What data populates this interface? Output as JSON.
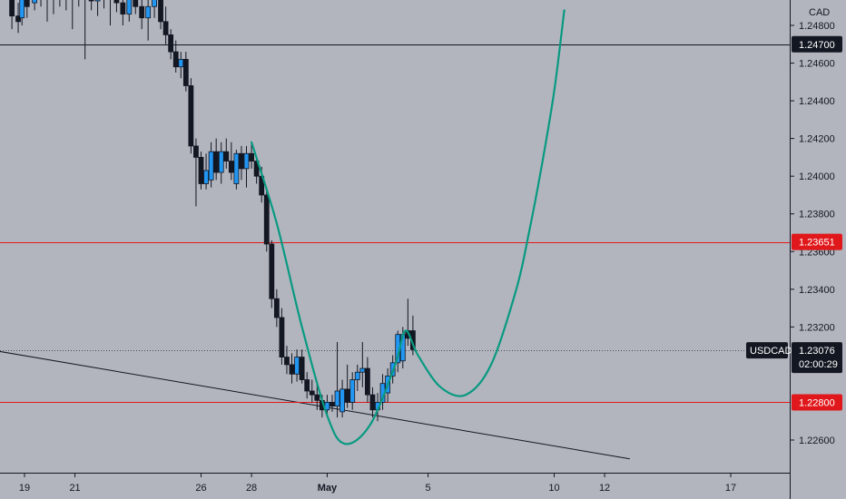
{
  "chart_data": {
    "type": "candlestick",
    "symbol": "USDCAD",
    "currency": "CAD",
    "ylim": [
      1.2248,
      1.2505
    ],
    "y_ticks": [
      1.248,
      1.246,
      1.244,
      1.242,
      1.24,
      1.238,
      1.236,
      1.234,
      1.232,
      1.226
    ],
    "y_tick_labels": [
      "1.24800",
      "1.24600",
      "1.24400",
      "1.24200",
      "1.24000",
      "1.23800",
      "1.23600",
      "1.23400",
      "1.23200",
      "1.22600"
    ],
    "x_ticks": [
      {
        "label": "19",
        "day": 19,
        "bold": false
      },
      {
        "label": "21",
        "day": 21,
        "bold": false
      },
      {
        "label": "26",
        "day": 26,
        "bold": false
      },
      {
        "label": "28",
        "day": 28,
        "bold": false
      },
      {
        "label": "May",
        "day": 31,
        "bold": true
      },
      {
        "label": "5",
        "day": 35,
        "bold": false
      },
      {
        "label": "10",
        "day": 40,
        "bold": false
      },
      {
        "label": "12",
        "day": 42,
        "bold": false
      },
      {
        "label": "17",
        "day": 47,
        "bold": false
      }
    ],
    "horizontal_lines": [
      {
        "value": 1.247,
        "label": "1.24700",
        "color": "#131722",
        "label_bg": "#131722"
      },
      {
        "value": 1.23651,
        "label": "1.23651",
        "color": "#e0181b",
        "label_bg": "#e0181b"
      },
      {
        "value": 1.228,
        "label": "1.22800",
        "color": "#e0181b",
        "label_bg": "#e0181b"
      }
    ],
    "current_price": {
      "value": 1.23076,
      "label": "1.23076",
      "countdown": "02:00:29",
      "symbol_label": "USDCAD"
    },
    "trendline": {
      "points": [
        [
          16.7,
          1.231
        ],
        [
          43.0,
          1.225
        ]
      ],
      "color": "#131722"
    },
    "projection": {
      "color": "#089981",
      "points": [
        [
          28.0,
          1.2418
        ],
        [
          29.0,
          1.2375
        ],
        [
          30.0,
          1.232
        ],
        [
          31.0,
          1.2273
        ],
        [
          31.7,
          1.2258
        ],
        [
          32.7,
          1.2268
        ],
        [
          33.7,
          1.23
        ],
        [
          34.1,
          1.2318
        ],
        [
          34.6,
          1.2305
        ],
        [
          35.5,
          1.2288
        ],
        [
          36.5,
          1.2284
        ],
        [
          37.5,
          1.23
        ],
        [
          38.5,
          1.234
        ],
        [
          39.0,
          1.237
        ],
        [
          39.5,
          1.2405
        ],
        [
          40.0,
          1.2445
        ],
        [
          40.4,
          1.2488
        ]
      ]
    },
    "candles": [
      [
        18.5,
        1.2495,
        1.2504,
        1.2478,
        1.2485
      ],
      [
        18.75,
        1.2485,
        1.2492,
        1.2476,
        1.2482
      ],
      [
        18.9,
        1.2484,
        1.2498,
        1.248,
        1.2495
      ],
      [
        19.1,
        1.2495,
        1.25,
        1.2484,
        1.249
      ],
      [
        19.4,
        1.2492,
        1.2505,
        1.2488,
        1.25
      ],
      [
        19.65,
        1.25,
        1.2504,
        1.249,
        1.2494
      ],
      [
        19.9,
        1.2495,
        1.25,
        1.2482,
        1.2498
      ],
      [
        20.15,
        1.2498,
        1.2504,
        1.2486,
        1.2495
      ],
      [
        20.4,
        1.2495,
        1.2504,
        1.249,
        1.25
      ],
      [
        20.65,
        1.25,
        1.2505,
        1.2488,
        1.2495
      ],
      [
        20.9,
        1.2495,
        1.25,
        1.2478,
        1.2498
      ],
      [
        21.15,
        1.2498,
        1.2503,
        1.249,
        1.2494
      ],
      [
        21.4,
        1.2494,
        1.25,
        1.2462,
        1.2497
      ],
      [
        21.65,
        1.2497,
        1.2503,
        1.2488,
        1.2493
      ],
      [
        21.9,
        1.2493,
        1.25,
        1.2485,
        1.2497
      ],
      [
        22.15,
        1.2497,
        1.2503,
        1.2489,
        1.2494
      ],
      [
        22.4,
        1.2494,
        1.25,
        1.248,
        1.2497
      ],
      [
        22.65,
        1.2497,
        1.2503,
        1.2487,
        1.2492
      ],
      [
        22.9,
        1.2492,
        1.2497,
        1.248,
        1.2486
      ],
      [
        23.15,
        1.2486,
        1.2498,
        1.2482,
        1.2496
      ],
      [
        23.4,
        1.2496,
        1.25,
        1.2486,
        1.249
      ],
      [
        23.65,
        1.249,
        1.25,
        1.2478,
        1.2484
      ],
      [
        23.9,
        1.2484,
        1.2496,
        1.2472,
        1.249
      ],
      [
        24.15,
        1.249,
        1.25,
        1.2484,
        1.2494
      ],
      [
        24.4,
        1.2494,
        1.25,
        1.2478,
        1.2482
      ],
      [
        24.6,
        1.2482,
        1.249,
        1.247,
        1.2475
      ],
      [
        24.8,
        1.2475,
        1.2478,
        1.2462,
        1.2466
      ],
      [
        25.0,
        1.2466,
        1.2472,
        1.2455,
        1.2458
      ],
      [
        25.2,
        1.2458,
        1.2466,
        1.2452,
        1.2462
      ],
      [
        25.4,
        1.2462,
        1.2466,
        1.2445,
        1.2448
      ],
      [
        25.6,
        1.2448,
        1.2452,
        1.2412,
        1.2416
      ],
      [
        25.8,
        1.2416,
        1.242,
        1.2384,
        1.241
      ],
      [
        26.0,
        1.241,
        1.2413,
        1.2393,
        1.2396
      ],
      [
        26.2,
        1.2396,
        1.2412,
        1.2393,
        1.2403
      ],
      [
        26.4,
        1.2398,
        1.2418,
        1.2394,
        1.2413
      ],
      [
        26.6,
        1.2413,
        1.242,
        1.2398,
        1.2402
      ],
      [
        26.8,
        1.2402,
        1.2418,
        1.2396,
        1.2413
      ],
      [
        27.0,
        1.2413,
        1.242,
        1.2404,
        1.2408
      ],
      [
        27.2,
        1.2408,
        1.2418,
        1.2398,
        1.2402
      ],
      [
        27.4,
        1.2396,
        1.2414,
        1.2393,
        1.2412
      ],
      [
        27.6,
        1.2412,
        1.2416,
        1.2398,
        1.2404
      ],
      [
        27.8,
        1.2404,
        1.2416,
        1.2394,
        1.2412
      ],
      [
        28.0,
        1.2412,
        1.2418,
        1.2404,
        1.2408
      ],
      [
        28.2,
        1.2408,
        1.241,
        1.2396,
        1.24
      ],
      [
        28.4,
        1.24,
        1.2405,
        1.2386,
        1.239
      ],
      [
        28.6,
        1.239,
        1.2394,
        1.236,
        1.2364
      ],
      [
        28.8,
        1.2364,
        1.2366,
        1.233,
        1.2335
      ],
      [
        29.0,
        1.2335,
        1.234,
        1.232,
        1.2325
      ],
      [
        29.2,
        1.2325,
        1.233,
        1.23,
        1.2304
      ],
      [
        29.4,
        1.2304,
        1.231,
        1.2295,
        1.23
      ],
      [
        29.6,
        1.23,
        1.2306,
        1.229,
        1.2295
      ],
      [
        29.8,
        1.2295,
        1.2308,
        1.2291,
        1.2304
      ],
      [
        30.0,
        1.2304,
        1.2308,
        1.229,
        1.2292
      ],
      [
        30.2,
        1.2292,
        1.2296,
        1.2282,
        1.2286
      ],
      [
        30.4,
        1.2286,
        1.2292,
        1.228,
        1.2284
      ],
      [
        30.6,
        1.2284,
        1.229,
        1.2276,
        1.2281
      ],
      [
        30.8,
        1.2281,
        1.2284,
        1.2272,
        1.2276
      ],
      [
        31.0,
        1.2276,
        1.2284,
        1.2272,
        1.228
      ],
      [
        31.2,
        1.228,
        1.2284,
        1.2275,
        1.2278
      ],
      [
        31.4,
        1.2278,
        1.2312,
        1.2272,
        1.2286
      ],
      [
        31.6,
        1.2275,
        1.2292,
        1.2272,
        1.2287
      ],
      [
        31.8,
        1.2287,
        1.23,
        1.2277,
        1.228
      ],
      [
        32.0,
        1.228,
        1.2296,
        1.2276,
        1.2292
      ],
      [
        32.2,
        1.2292,
        1.23,
        1.2286,
        1.2296
      ],
      [
        32.4,
        1.2296,
        1.2312,
        1.2288,
        1.2298
      ],
      [
        32.6,
        1.2298,
        1.2304,
        1.228,
        1.2284
      ],
      [
        32.8,
        1.2284,
        1.2288,
        1.2272,
        1.2276
      ],
      [
        33.0,
        1.2276,
        1.2285,
        1.227,
        1.228
      ],
      [
        33.2,
        1.228,
        1.2295,
        1.2276,
        1.229
      ],
      [
        33.4,
        1.2285,
        1.2298,
        1.228,
        1.2294
      ],
      [
        33.6,
        1.2294,
        1.2305,
        1.229,
        1.2301
      ],
      [
        33.8,
        1.2301,
        1.2318,
        1.2296,
        1.2316
      ],
      [
        34.0,
        1.2302,
        1.232,
        1.2298,
        1.2316
      ],
      [
        34.2,
        1.2318,
        1.2335,
        1.231,
        1.2314
      ],
      [
        34.4,
        1.2318,
        1.2326,
        1.2305,
        1.2308
      ]
    ]
  }
}
